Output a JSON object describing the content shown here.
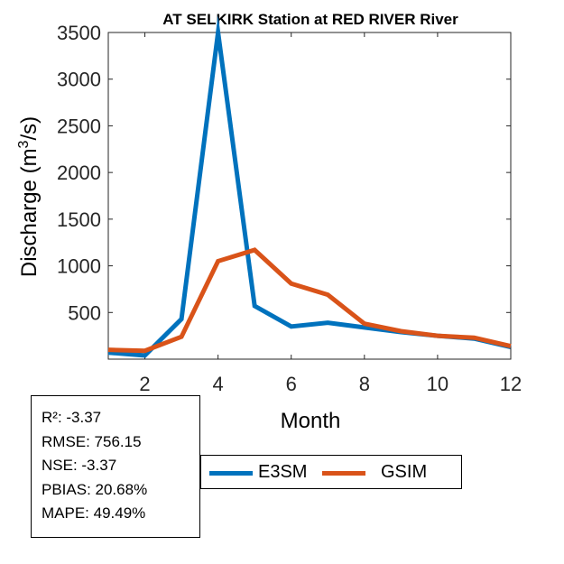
{
  "chart_data": {
    "type": "line",
    "title": "AT SELKIRK  Station at  RED RIVER  River",
    "xlabel": "Month",
    "ylabel": "Discharge (m3/s)",
    "ylabel_parts": {
      "prefix": "Discharge (m",
      "sup": "3",
      "suffix": "/s)"
    },
    "xlim": [
      1,
      12
    ],
    "ylim": [
      0,
      3500
    ],
    "xticks": [
      2,
      4,
      6,
      8,
      10,
      12
    ],
    "yticks": [
      500,
      1000,
      1500,
      2000,
      2500,
      3000,
      3500
    ],
    "x": [
      1,
      2,
      3,
      4,
      5,
      6,
      7,
      8,
      9,
      10,
      11,
      12
    ],
    "series": [
      {
        "name": "E3SM",
        "color": "#0072BD",
        "values": [
          70,
          40,
          430,
          3500,
          570,
          350,
          390,
          340,
          290,
          250,
          220,
          130
        ]
      },
      {
        "name": "GSIM",
        "color": "#D95319",
        "values": [
          100,
          90,
          240,
          1050,
          1170,
          810,
          690,
          380,
          300,
          250,
          230,
          140
        ]
      }
    ],
    "legend": [
      "E3SM",
      "GSIM"
    ],
    "legend_position": "bottom-center",
    "grid": false
  },
  "stats": [
    "R²: -3.37",
    "RMSE: 756.15",
    "NSE: -3.37",
    "PBIAS: 20.68%",
    "MAPE: 49.49%"
  ]
}
